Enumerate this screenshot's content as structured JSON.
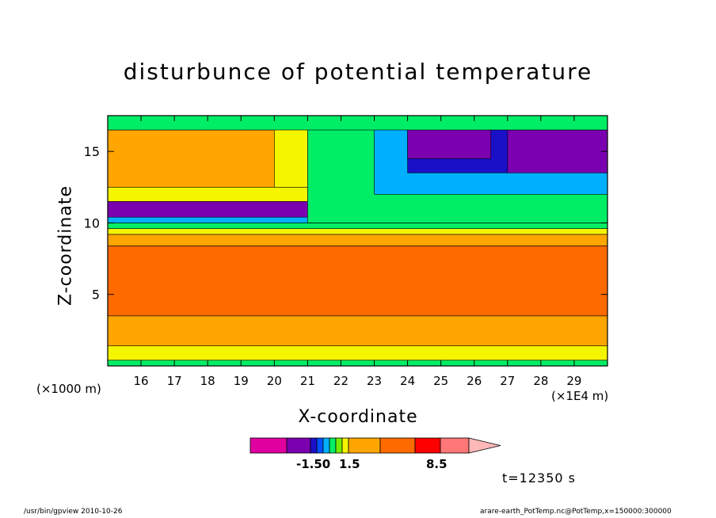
{
  "chart_data": {
    "type": "heatmap",
    "title": "disturbunce of potential temperature",
    "xlabel": "X-coordinate",
    "ylabel": "Z-coordinate",
    "x_unit_left": "(×1000 m)",
    "x_unit_right": "(×1E4 m)",
    "xlim": [
      15.0,
      30.0
    ],
    "ylim": [
      0.0,
      17.5
    ],
    "x_ticks": [
      16,
      17,
      18,
      19,
      20,
      21,
      22,
      23,
      24,
      25,
      26,
      27,
      28,
      29
    ],
    "y_ticks": [
      5,
      10,
      15
    ],
    "colorbar": {
      "colors": [
        "#e0009f",
        "#7a00b0",
        "#1a10c8",
        "#0050ff",
        "#00b0ff",
        "#00ee66",
        "#77ee00",
        "#f5f500",
        "#ffa500",
        "#ff6a00",
        "#ff0000",
        "#ff7777",
        "#ffb8b8"
      ],
      "labels": [
        "-1.50",
        "1.5",
        "8.5"
      ]
    },
    "regions": [
      {
        "x0": 15.0,
        "x1": 30.0,
        "y0": 0.0,
        "y1": 0.4,
        "color": "#00ee66"
      },
      {
        "x0": 15.0,
        "x1": 30.0,
        "y0": 0.4,
        "y1": 1.4,
        "color": "#f5f500"
      },
      {
        "x0": 15.0,
        "x1": 30.0,
        "y0": 1.4,
        "y1": 3.5,
        "color": "#ffa500"
      },
      {
        "x0": 15.0,
        "x1": 30.0,
        "y0": 3.5,
        "y1": 8.4,
        "color": "#ff6a00"
      },
      {
        "x0": 15.0,
        "x1": 30.0,
        "y0": 8.4,
        "y1": 9.2,
        "color": "#ffa500"
      },
      {
        "x0": 15.0,
        "x1": 30.0,
        "y0": 9.2,
        "y1": 9.6,
        "color": "#f5f500"
      },
      {
        "x0": 15.0,
        "x1": 30.0,
        "y0": 9.6,
        "y1": 10.0,
        "color": "#00ee66"
      },
      {
        "x0": 15.0,
        "x1": 25.0,
        "y0": 10.0,
        "y1": 10.4,
        "color": "#00b0ff"
      },
      {
        "x0": 15.0,
        "x1": 21.5,
        "y0": 10.4,
        "y1": 11.5,
        "color": "#7a00b0"
      },
      {
        "x0": 15.0,
        "x1": 21.0,
        "y0": 11.5,
        "y1": 12.5,
        "color": "#f5f500"
      },
      {
        "x0": 15.0,
        "x1": 20.0,
        "y0": 12.5,
        "y1": 16.5,
        "color": "#ffa500"
      },
      {
        "x0": 20.0,
        "x1": 21.0,
        "y0": 12.5,
        "y1": 17.5,
        "color": "#f5f500"
      },
      {
        "x0": 21.0,
        "x1": 30.0,
        "y0": 10.0,
        "y1": 17.5,
        "color": "#00ee66"
      },
      {
        "x0": 23.0,
        "x1": 30.0,
        "y0": 12.0,
        "y1": 17.5,
        "color": "#00b0ff"
      },
      {
        "x0": 24.0,
        "x1": 30.0,
        "y0": 13.5,
        "y1": 17.5,
        "color": "#1a10c8"
      },
      {
        "x0": 24.0,
        "x1": 26.5,
        "y0": 14.5,
        "y1": 17.0,
        "color": "#7a00b0"
      },
      {
        "x0": 27.0,
        "x1": 30.0,
        "y0": 13.5,
        "y1": 16.5,
        "color": "#7a00b0"
      },
      {
        "x0": 15.0,
        "x1": 30.0,
        "y0": 16.5,
        "y1": 17.5,
        "color": "#00ee66"
      }
    ]
  },
  "time_label": "t=12350 s",
  "footer": {
    "left": "/usr/bin/gpview   2010-10-26",
    "right": "arare-earth_PotTemp.nc@PotTemp,x=150000:300000"
  }
}
